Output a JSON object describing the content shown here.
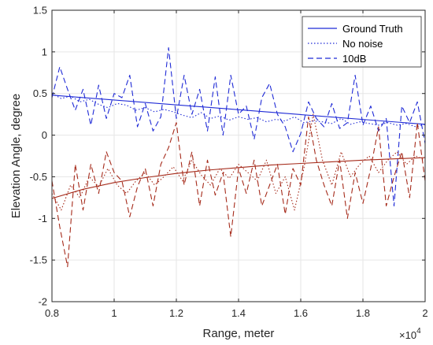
{
  "chart_data": {
    "type": "line",
    "xlabel": "Range, meter",
    "ylabel": "Elevation Angle, degree",
    "x_exponent_label": "×10",
    "x_exponent_power": "4",
    "xlim": [
      8000,
      20000
    ],
    "ylim": [
      -2,
      1.5
    ],
    "x_ticks": [
      8000,
      10000,
      12000,
      14000,
      16000,
      18000,
      20000
    ],
    "x_tick_labels": [
      "0.8",
      "1",
      "1.2",
      "1.4",
      "1.6",
      "1.8",
      "2"
    ],
    "y_ticks": [
      -2,
      -1.5,
      -1,
      -0.5,
      0,
      0.5,
      1,
      1.5
    ],
    "y_tick_labels": [
      "-2",
      "-1.5",
      "-1",
      "-0.5",
      "0",
      "0.5",
      "1",
      "1.5"
    ],
    "grid": true,
    "legend_position": "top-right",
    "legend": [
      {
        "label": "Ground Truth",
        "style": "solid"
      },
      {
        "label": "No noise",
        "style": "dotted"
      },
      {
        "label": "10dB",
        "style": "dashed"
      }
    ],
    "colors": {
      "target1": "#1f2ad6",
      "target2": "#a52a1a"
    },
    "series": [
      {
        "target": 1,
        "style": "solid",
        "x": [
          8000,
          20000
        ],
        "y": [
          0.48,
          0.13
        ]
      },
      {
        "target": 1,
        "style": "dotted",
        "x": [
          8000,
          8300,
          8600,
          8900,
          9200,
          9500,
          9800,
          10100,
          10400,
          10700,
          11000,
          11300,
          11600,
          11900,
          12200,
          12500,
          12800,
          13100,
          13400,
          13700,
          14000,
          14300,
          14600,
          14900,
          15200,
          15500,
          15800,
          16100,
          16400,
          16700,
          17000,
          17300,
          17600,
          17900,
          18200,
          18500,
          18800,
          19100,
          19400,
          19700,
          20000
        ],
        "y": [
          0.5,
          0.44,
          0.47,
          0.4,
          0.43,
          0.37,
          0.33,
          0.38,
          0.36,
          0.3,
          0.33,
          0.28,
          0.31,
          0.28,
          0.24,
          0.21,
          0.27,
          0.2,
          0.23,
          0.18,
          0.22,
          0.19,
          0.21,
          0.16,
          0.19,
          0.17,
          0.22,
          0.15,
          0.17,
          0.16,
          0.14,
          0.2,
          0.13,
          0.16,
          0.14,
          0.12,
          0.15,
          0.12,
          0.14,
          0.1,
          0.13
        ]
      },
      {
        "target": 1,
        "style": "dashed",
        "x": [
          8000,
          8250,
          8500,
          8750,
          9000,
          9250,
          9500,
          9750,
          10000,
          10250,
          10500,
          10750,
          11000,
          11250,
          11500,
          11750,
          12000,
          12250,
          12500,
          12750,
          13000,
          13250,
          13500,
          13750,
          14000,
          14250,
          14500,
          14750,
          15000,
          15250,
          15500,
          15750,
          16000,
          16250,
          16500,
          16750,
          17000,
          17250,
          17500,
          17750,
          18000,
          18250,
          18500,
          18750,
          19000,
          19250,
          19500,
          19750,
          20000
        ],
        "y": [
          0.45,
          0.82,
          0.55,
          0.3,
          0.55,
          0.12,
          0.6,
          0.2,
          0.5,
          0.45,
          0.72,
          0.1,
          0.38,
          0.05,
          0.22,
          1.05,
          0.2,
          0.72,
          0.25,
          0.55,
          0.05,
          0.7,
          0.0,
          0.72,
          0.25,
          0.35,
          -0.05,
          0.45,
          0.62,
          0.25,
          0.1,
          -0.2,
          0.02,
          0.4,
          0.2,
          0.1,
          0.38,
          0.08,
          0.15,
          0.72,
          0.12,
          0.35,
          0.05,
          0.2,
          -0.85,
          0.35,
          0.15,
          0.4,
          -0.1
        ]
      },
      {
        "target": 2,
        "style": "solid",
        "x": [
          8000,
          9000,
          10000,
          11000,
          12000,
          13000,
          14000,
          15000,
          16000,
          17000,
          18000,
          19000,
          20000
        ],
        "y": [
          -0.76,
          -0.65,
          -0.57,
          -0.51,
          -0.46,
          -0.42,
          -0.39,
          -0.36,
          -0.34,
          -0.32,
          -0.3,
          -0.285,
          -0.27
        ]
      },
      {
        "target": 2,
        "style": "dotted",
        "x": [
          8000,
          8300,
          8600,
          8900,
          9200,
          9500,
          9800,
          10100,
          10400,
          10700,
          11000,
          11300,
          11600,
          11900,
          12200,
          12500,
          12800,
          13100,
          13400,
          13700,
          14000,
          14300,
          14600,
          14900,
          15200,
          15500,
          15800,
          16100,
          16400,
          16700,
          17000,
          17300,
          17600,
          17900,
          18200,
          18500,
          18800,
          19100,
          19400,
          19700,
          20000
        ],
        "y": [
          -0.7,
          -0.9,
          -0.6,
          -0.75,
          -0.5,
          -0.62,
          -0.4,
          -0.6,
          -0.7,
          -0.55,
          -0.45,
          -0.6,
          -0.5,
          -0.38,
          -0.55,
          -0.3,
          -0.48,
          -0.6,
          -0.4,
          -0.52,
          -0.35,
          -0.45,
          -0.55,
          -0.3,
          -0.7,
          -0.5,
          -0.9,
          -0.4,
          0.25,
          -0.3,
          -0.6,
          -0.2,
          -0.5,
          -0.35,
          -0.25,
          -0.45,
          -0.3,
          -0.2,
          -0.35,
          -0.25,
          -0.3
        ]
      },
      {
        "target": 2,
        "style": "dashed",
        "x": [
          8000,
          8250,
          8500,
          8750,
          9000,
          9250,
          9500,
          9750,
          10000,
          10250,
          10500,
          10750,
          11000,
          11250,
          11500,
          11750,
          12000,
          12250,
          12500,
          12750,
          13000,
          13250,
          13500,
          13750,
          14000,
          14250,
          14500,
          14750,
          15000,
          15250,
          15500,
          15750,
          16000,
          16250,
          16500,
          16750,
          17000,
          17250,
          17500,
          17750,
          18000,
          18250,
          18500,
          18750,
          19000,
          19250,
          19500,
          19750,
          20000
        ],
        "y": [
          -0.55,
          -1.1,
          -1.58,
          -0.35,
          -0.9,
          -0.35,
          -0.7,
          -0.2,
          -0.45,
          -0.55,
          -0.98,
          -0.62,
          -0.4,
          -0.85,
          -0.35,
          -0.15,
          0.15,
          -0.6,
          -0.2,
          -0.85,
          -0.3,
          -0.72,
          -0.45,
          -1.22,
          -0.4,
          -0.7,
          -0.3,
          -0.85,
          -0.6,
          -0.35,
          -0.95,
          -0.4,
          -0.6,
          0.22,
          -0.3,
          -0.6,
          -0.85,
          -0.3,
          -1.0,
          -0.45,
          -0.82,
          -0.4,
          0.1,
          -0.85,
          -0.5,
          -0.2,
          -0.75,
          0.15,
          -0.55
        ]
      }
    ]
  }
}
